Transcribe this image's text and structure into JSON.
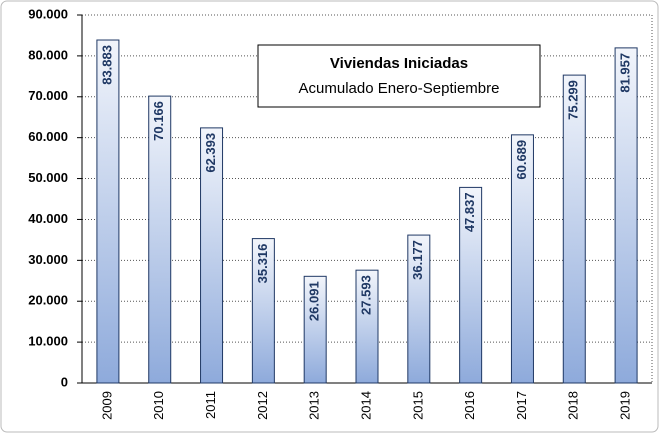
{
  "chart_data": {
    "type": "bar",
    "title": "Viviendas Iniciadas",
    "subtitle": "Acumulado Enero-Septiembre",
    "categories": [
      "2009",
      "2010",
      "2011",
      "2012",
      "2013",
      "2014",
      "2015",
      "2016",
      "2017",
      "2018",
      "2019"
    ],
    "values": [
      83883,
      70166,
      62393,
      35316,
      26091,
      27593,
      36177,
      47837,
      60689,
      75299,
      81957
    ],
    "value_labels": [
      "83.883",
      "70.166",
      "62.393",
      "35.316",
      "26.091",
      "27.593",
      "36.177",
      "47.837",
      "60.689",
      "75.299",
      "81.957"
    ],
    "color": "#8eaadb",
    "ylim": [
      0,
      90000
    ],
    "yticks": [
      0,
      {
        "value": 10000,
        "label": "10.000"
      },
      {
        "value": 20000,
        "label": "20.000"
      },
      {
        "value": 30000,
        "label": "30.000"
      },
      {
        "value": 40000,
        "label": "40.000"
      },
      {
        "value": 50000,
        "label": "50.000"
      },
      {
        "value": 60000,
        "label": "60.000"
      },
      {
        "value": 70000,
        "label": "70.000"
      },
      {
        "value": 80000,
        "label": "80.000"
      },
      {
        "value": 90000,
        "label": "90.000"
      }
    ],
    "grid": true
  }
}
